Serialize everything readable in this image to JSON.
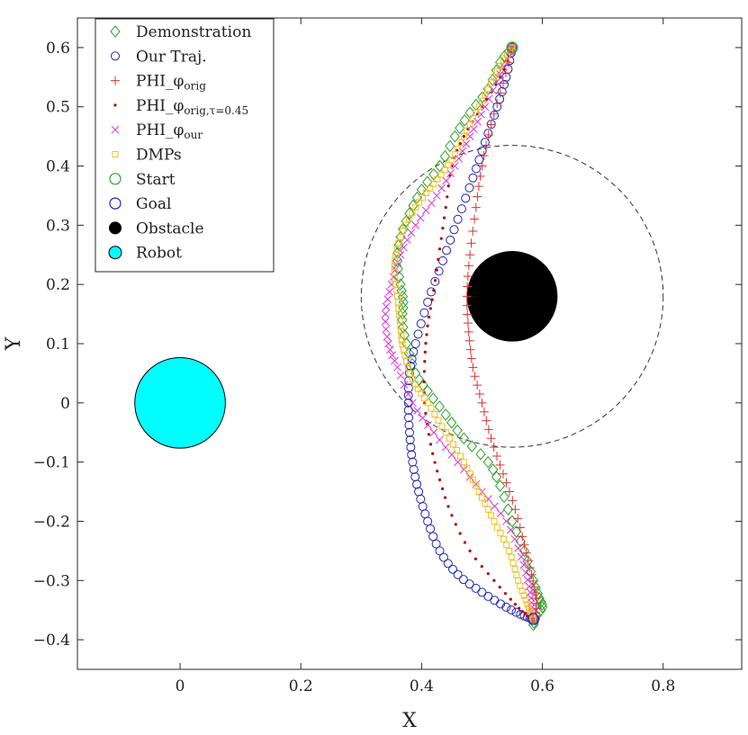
{
  "chart_data": {
    "type": "scatter",
    "xlabel": "X",
    "ylabel": "Y",
    "xlim": [
      -0.17,
      0.93
    ],
    "ylim": [
      -0.45,
      0.65
    ],
    "xticks": [
      0,
      0.2,
      0.4,
      0.6,
      0.8
    ],
    "yticks": [
      -0.4,
      -0.3,
      -0.2,
      -0.1,
      0,
      0.1,
      0.2,
      0.3,
      0.4,
      0.5,
      0.6
    ],
    "xtick_labels": [
      "0",
      "0.2",
      "0.4",
      "0.6",
      "0.8"
    ],
    "ytick_labels": [
      "−0.4",
      "−0.3",
      "−0.2",
      "−0.1",
      "0",
      "0.1",
      "0.2",
      "0.3",
      "0.4",
      "0.5",
      "0.6"
    ],
    "grid": false,
    "legend_position": "top-left",
    "start": {
      "x": 0.55,
      "y": 0.6
    },
    "goal": {
      "x": 0.585,
      "y": -0.365
    },
    "obstacle": {
      "x": 0.55,
      "y": 0.18,
      "r": 0.075
    },
    "obstacle_influence": {
      "x": 0.55,
      "y": 0.18,
      "r": 0.25
    },
    "robot": {
      "x": 0.0,
      "y": 0.0,
      "r": 0.075
    },
    "series": [
      {
        "name": "Demonstration",
        "marker": "diamond",
        "color": "#2ca02c",
        "points": [
          [
            0.55,
            0.6
          ],
          [
            0.53,
            0.575
          ],
          [
            0.51,
            0.53
          ],
          [
            0.48,
            0.49
          ],
          [
            0.455,
            0.45
          ],
          [
            0.43,
            0.4
          ],
          [
            0.4,
            0.36
          ],
          [
            0.38,
            0.32
          ],
          [
            0.365,
            0.28
          ],
          [
            0.36,
            0.24
          ],
          [
            0.365,
            0.2
          ],
          [
            0.37,
            0.17
          ],
          [
            0.368,
            0.14
          ],
          [
            0.375,
            0.1
          ],
          [
            0.39,
            0.05
          ],
          [
            0.41,
            0.02
          ],
          [
            0.44,
            -0.02
          ],
          [
            0.47,
            -0.06
          ],
          [
            0.51,
            -0.1
          ],
          [
            0.53,
            -0.14
          ],
          [
            0.55,
            -0.2
          ],
          [
            0.57,
            -0.25
          ],
          [
            0.585,
            -0.3
          ],
          [
            0.595,
            -0.33
          ],
          [
            0.6,
            -0.345
          ],
          [
            0.59,
            -0.36
          ],
          [
            0.585,
            -0.375
          ]
        ]
      },
      {
        "name": "Our Traj.",
        "marker": "circle",
        "color": "#2222bb",
        "points": [
          [
            0.55,
            0.6
          ],
          [
            0.54,
            0.55
          ],
          [
            0.525,
            0.5
          ],
          [
            0.505,
            0.44
          ],
          [
            0.485,
            0.38
          ],
          [
            0.46,
            0.31
          ],
          [
            0.435,
            0.24
          ],
          [
            0.41,
            0.17
          ],
          [
            0.39,
            0.1
          ],
          [
            0.38,
            0.05
          ],
          [
            0.378,
            0.0
          ],
          [
            0.38,
            -0.05
          ],
          [
            0.385,
            -0.1
          ],
          [
            0.395,
            -0.15
          ],
          [
            0.41,
            -0.2
          ],
          [
            0.43,
            -0.25
          ],
          [
            0.46,
            -0.29
          ],
          [
            0.5,
            -0.32
          ],
          [
            0.54,
            -0.345
          ],
          [
            0.57,
            -0.36
          ],
          [
            0.585,
            -0.365
          ]
        ]
      },
      {
        "name": "PHI_φorig",
        "marker": "plus",
        "color": "#e03030",
        "points": [
          [
            0.55,
            0.6
          ],
          [
            0.535,
            0.54
          ],
          [
            0.515,
            0.47
          ],
          [
            0.5,
            0.4
          ],
          [
            0.49,
            0.33
          ],
          [
            0.48,
            0.25
          ],
          [
            0.475,
            0.18
          ],
          [
            0.478,
            0.12
          ],
          [
            0.485,
            0.06
          ],
          [
            0.5,
            0.0
          ],
          [
            0.515,
            -0.06
          ],
          [
            0.535,
            -0.12
          ],
          [
            0.555,
            -0.18
          ],
          [
            0.57,
            -0.24
          ],
          [
            0.582,
            -0.29
          ],
          [
            0.59,
            -0.33
          ],
          [
            0.588,
            -0.36
          ],
          [
            0.585,
            -0.365
          ]
        ]
      },
      {
        "name": "PHI_φorig,τ=0.45",
        "marker": "dot",
        "color": "#b00000",
        "points": [
          [
            0.55,
            0.6
          ],
          [
            0.53,
            0.55
          ],
          [
            0.5,
            0.5
          ],
          [
            0.47,
            0.45
          ],
          [
            0.45,
            0.4
          ],
          [
            0.44,
            0.33
          ],
          [
            0.43,
            0.26
          ],
          [
            0.42,
            0.19
          ],
          [
            0.41,
            0.13
          ],
          [
            0.405,
            0.07
          ],
          [
            0.405,
            0.0
          ],
          [
            0.415,
            -0.07
          ],
          [
            0.43,
            -0.13
          ],
          [
            0.45,
            -0.19
          ],
          [
            0.48,
            -0.25
          ],
          [
            0.52,
            -0.3
          ],
          [
            0.555,
            -0.34
          ],
          [
            0.575,
            -0.36
          ],
          [
            0.585,
            -0.365
          ]
        ]
      },
      {
        "name": "PHI_φour",
        "marker": "cross",
        "color": "#dd30dd",
        "points": [
          [
            0.55,
            0.6
          ],
          [
            0.53,
            0.555
          ],
          [
            0.505,
            0.5
          ],
          [
            0.48,
            0.45
          ],
          [
            0.455,
            0.4
          ],
          [
            0.425,
            0.35
          ],
          [
            0.39,
            0.3
          ],
          [
            0.365,
            0.25
          ],
          [
            0.35,
            0.2
          ],
          [
            0.34,
            0.15
          ],
          [
            0.345,
            0.1
          ],
          [
            0.36,
            0.06
          ],
          [
            0.385,
            0.0
          ],
          [
            0.42,
            -0.05
          ],
          [
            0.46,
            -0.1
          ],
          [
            0.5,
            -0.15
          ],
          [
            0.54,
            -0.2
          ],
          [
            0.565,
            -0.26
          ],
          [
            0.578,
            -0.31
          ],
          [
            0.583,
            -0.345
          ],
          [
            0.585,
            -0.365
          ]
        ]
      },
      {
        "name": "DMPs",
        "marker": "square",
        "color": "#f0c020",
        "points": [
          [
            0.55,
            0.6
          ],
          [
            0.525,
            0.56
          ],
          [
            0.5,
            0.51
          ],
          [
            0.475,
            0.46
          ],
          [
            0.45,
            0.41
          ],
          [
            0.42,
            0.37
          ],
          [
            0.39,
            0.33
          ],
          [
            0.365,
            0.28
          ],
          [
            0.355,
            0.23
          ],
          [
            0.36,
            0.18
          ],
          [
            0.365,
            0.13
          ],
          [
            0.37,
            0.09
          ],
          [
            0.385,
            0.04
          ],
          [
            0.41,
            0.0
          ],
          [
            0.44,
            -0.05
          ],
          [
            0.47,
            -0.1
          ],
          [
            0.495,
            -0.15
          ],
          [
            0.52,
            -0.2
          ],
          [
            0.545,
            -0.25
          ],
          [
            0.56,
            -0.3
          ],
          [
            0.575,
            -0.34
          ],
          [
            0.585,
            -0.365
          ]
        ]
      }
    ]
  },
  "legend": {
    "items": [
      {
        "label": "Demonstration",
        "sub": ""
      },
      {
        "label": "Our Traj.",
        "sub": ""
      },
      {
        "label": "PHI_φ",
        "sub": "orig"
      },
      {
        "label": "PHI_φ",
        "sub": "orig,τ=0.45"
      },
      {
        "label": "PHI_φ",
        "sub": "our"
      },
      {
        "label": "DMPs",
        "sub": ""
      },
      {
        "label": "Start",
        "sub": ""
      },
      {
        "label": "Goal",
        "sub": ""
      },
      {
        "label": "Obstacle",
        "sub": ""
      },
      {
        "label": "Robot",
        "sub": ""
      }
    ]
  },
  "colors": {
    "obstacle": "#000000",
    "robot": "#00ffff",
    "start": "#2ca02c",
    "goal": "#2222bb",
    "influence_circle": "#333333"
  }
}
